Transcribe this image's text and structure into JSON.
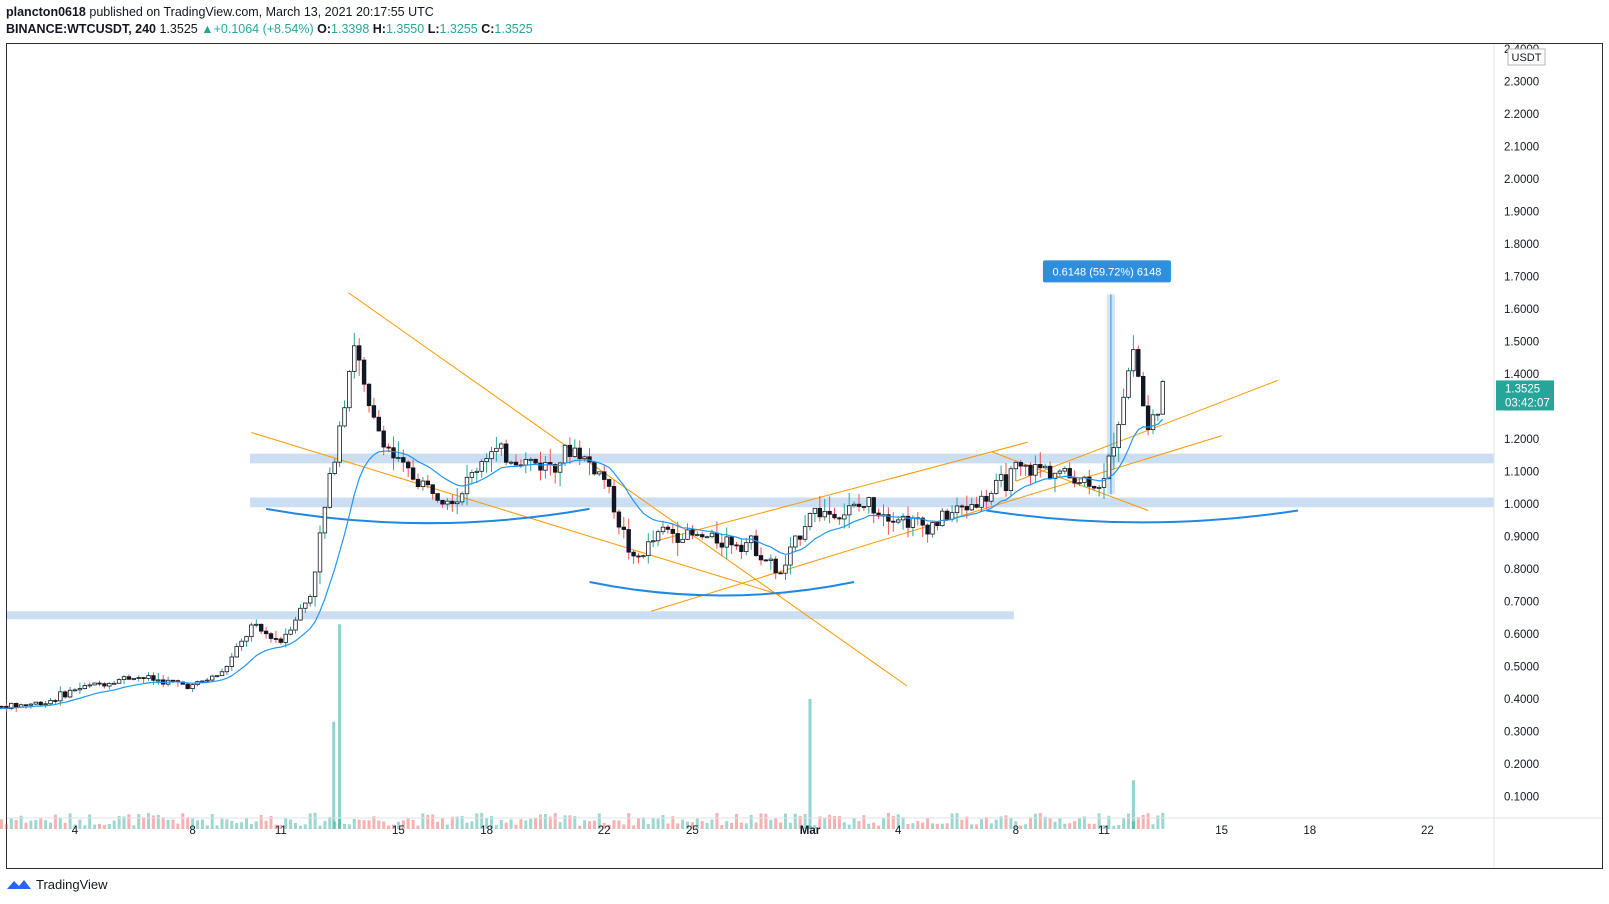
{
  "header": {
    "author": "plancton0618",
    "published_text": " published on TradingView.com, March 13, 2021 20:17:55 UTC",
    "symbol": "BINANCE:WTCUSDT, 240",
    "last": "1.3525",
    "change": "▲+0.1064 (+8.54%)",
    "o_label": "O:",
    "o_value": "1.3398",
    "h_label": "H:",
    "h_value": "1.3550",
    "l_label": "L:",
    "l_value": "1.3255",
    "c_label": "C:",
    "c_value": "1.3525"
  },
  "price_axis": {
    "currency": "USDT",
    "ticks": [
      "2.4000",
      "2.3000",
      "2.2000",
      "2.1000",
      "2.0000",
      "1.9000",
      "1.8000",
      "1.7000",
      "1.6000",
      "1.5000",
      "1.4000",
      "1.3000",
      "1.2000",
      "1.1000",
      "1.0000",
      "0.9000",
      "0.8000",
      "0.7000",
      "0.6000",
      "0.5000",
      "0.4000",
      "0.3000",
      "0.2000",
      "0.1000"
    ],
    "last_price_label": "1.3525",
    "countdown_label": "03:42:07"
  },
  "time_axis": {
    "ticks": [
      "4",
      "8",
      "11",
      "15",
      "18",
      "22",
      "25",
      "Mar",
      "4",
      "8",
      "11",
      "15",
      "18",
      "22"
    ]
  },
  "measure": {
    "label": "0.6148 (59.72%) 6148"
  },
  "footer": {
    "brand": "TradingView"
  },
  "colors": {
    "up": "#26a69a",
    "down": "#ef5350",
    "candle_body": "#131722",
    "ma": "#2196f3",
    "trendline": "#ff9800",
    "zone": "#bbd3f0",
    "arc": "#1e88e5",
    "measure": "#2f8fdc"
  },
  "chart_data": {
    "type": "candlestick",
    "symbol": "BINANCE:WTCUSDT",
    "interval": "240",
    "x": [
      "Feb 4",
      "Feb 8",
      "Feb 11",
      "Feb 15",
      "Feb 18",
      "Feb 22",
      "Feb 25",
      "Mar 1",
      "Mar 4",
      "Mar 8",
      "Mar 11",
      "Mar 15",
      "Mar 18",
      "Mar 22"
    ],
    "ylim": [
      0,
      2.42
    ],
    "close_path": [
      [
        "Feb 1",
        0.37
      ],
      [
        "Feb 3",
        0.39
      ],
      [
        "Feb 4",
        0.43
      ],
      [
        "Feb 6",
        0.47
      ],
      [
        "Feb 8",
        0.44
      ],
      [
        "Feb 9",
        0.48
      ],
      [
        "Feb 10",
        0.62
      ],
      [
        "Feb 11",
        0.58
      ],
      [
        "Feb 12",
        0.72
      ],
      [
        "Feb 13",
        1.25
      ],
      [
        "Feb 13.5",
        1.5
      ],
      [
        "Feb 14",
        1.28
      ],
      [
        "Feb 15",
        1.12
      ],
      [
        "Feb 16",
        1.05
      ],
      [
        "Feb 17",
        1.02
      ],
      [
        "Feb 18",
        1.16
      ],
      [
        "Feb 20",
        1.12
      ],
      [
        "Feb 21",
        1.17
      ],
      [
        "Feb 22",
        1.08
      ],
      [
        "Feb 23",
        0.82
      ],
      [
        "Feb 24",
        0.92
      ],
      [
        "Feb 25",
        0.9
      ],
      [
        "Feb 27",
        0.88
      ],
      [
        "Feb 28",
        0.78
      ],
      [
        "Mar 1",
        0.98
      ],
      [
        "Mar 2",
        0.97
      ],
      [
        "Mar 3",
        1.0
      ],
      [
        "Mar 4",
        0.96
      ],
      [
        "Mar 5",
        0.93
      ],
      [
        "Mar 6",
        0.98
      ],
      [
        "Mar 7",
        1.02
      ],
      [
        "Mar 8",
        1.1
      ],
      [
        "Mar 9",
        1.11
      ],
      [
        "Mar 10",
        1.08
      ],
      [
        "Mar 11",
        1.06
      ],
      [
        "Mar 12",
        1.48
      ],
      [
        "Mar 12.5",
        1.22
      ],
      [
        "Mar 13",
        1.35
      ]
    ],
    "volume_peaks": [
      [
        "Feb 13",
        0.63
      ],
      [
        "Feb 12.8",
        0.33
      ],
      [
        "Mar 1",
        0.4
      ],
      [
        "Mar 12",
        0.15
      ]
    ],
    "zones": [
      [
        0.655,
        0.67
      ],
      [
        0.99,
        1.02
      ],
      [
        1.125,
        1.155
      ]
    ],
    "last_price": 1.3525,
    "measure": {
      "from": 1.03,
      "to": 1.645,
      "label": "0.6148 (59.72%) 6148"
    }
  }
}
